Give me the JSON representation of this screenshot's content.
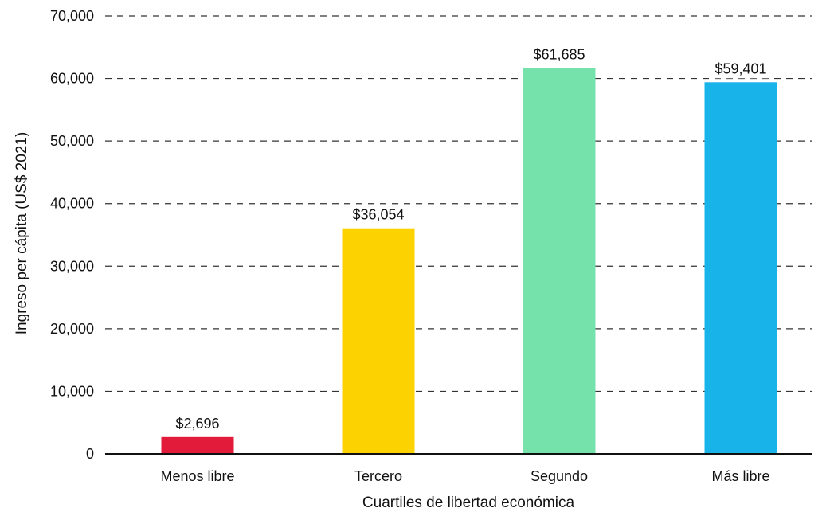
{
  "chart_data": {
    "type": "bar",
    "title": "",
    "xlabel": "Cuartiles de libertad económica",
    "ylabel": "Ingreso per cápita (US$ 2021)",
    "ylim": [
      0,
      70000
    ],
    "y_ticks": [
      0,
      10000,
      20000,
      30000,
      40000,
      50000,
      60000,
      70000
    ],
    "y_tick_labels": [
      "0",
      "10,000",
      "20,000",
      "30,000",
      "40,000",
      "50,000",
      "60,000",
      "70,000"
    ],
    "categories": [
      "Menos libre",
      "Tercero",
      "Segundo",
      "Más libre"
    ],
    "values": [
      2696,
      36054,
      61685,
      59401
    ],
    "data_labels": [
      "$2,696",
      "$36,054",
      "$61,685",
      "$59,401"
    ],
    "colors": [
      "#e31b3b",
      "#fcd200",
      "#74e2aa",
      "#18b4e9"
    ],
    "grid": "horizontal-dashed",
    "legend": "none"
  }
}
